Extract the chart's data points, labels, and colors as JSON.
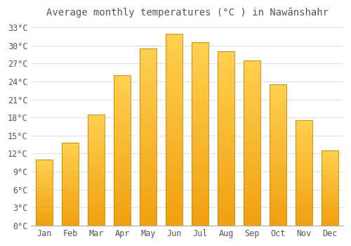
{
  "title": "Average monthly temperatures (°C ) in Nawānshahr",
  "months": [
    "Jan",
    "Feb",
    "Mar",
    "Apr",
    "May",
    "Jun",
    "Jul",
    "Aug",
    "Sep",
    "Oct",
    "Nov",
    "Dec"
  ],
  "values": [
    11.0,
    13.8,
    18.5,
    25.0,
    29.5,
    32.0,
    30.5,
    29.0,
    27.5,
    23.5,
    17.5,
    12.5
  ],
  "bar_color_bottom": "#F0A010",
  "bar_color_top": "#FFD050",
  "bar_edge_color": "#C88000",
  "ylim": [
    0,
    34
  ],
  "yticks": [
    0,
    3,
    6,
    9,
    12,
    15,
    18,
    21,
    24,
    27,
    30,
    33
  ],
  "background_color": "#FFFFFF",
  "grid_color": "#DDDDDD",
  "title_fontsize": 10,
  "tick_fontsize": 8.5,
  "font_color": "#555555",
  "bar_width": 0.65
}
